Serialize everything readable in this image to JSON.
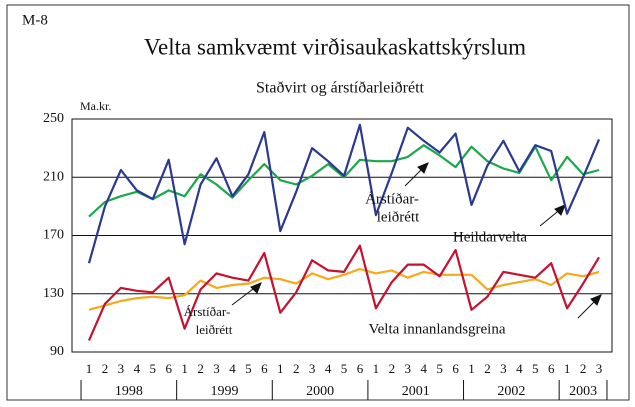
{
  "chart_data": {
    "type": "line",
    "code": "M-8",
    "title": "Velta samkvæmt virðisaukaskattskýrslum",
    "subtitle": "Staðvirt og árstíðarleiðrétt",
    "y_axis_label": "Ma.kr.",
    "categories": [
      "1",
      "2",
      "3",
      "4",
      "5",
      "6",
      "1",
      "2",
      "3",
      "4",
      "5",
      "6",
      "1",
      "2",
      "3",
      "4",
      "5",
      "6",
      "1",
      "2",
      "3",
      "4",
      "5",
      "6",
      "1",
      "2",
      "3",
      "4",
      "5",
      "6",
      "1",
      "2",
      "3"
    ],
    "years": [
      "1998",
      "1999",
      "2000",
      "2001",
      "2002",
      "2003"
    ],
    "ylim": [
      90,
      250
    ],
    "yticks": [
      90,
      130,
      170,
      210,
      250
    ],
    "grid": true,
    "series": [
      {
        "name": "Heildarvelta",
        "color": "#2b3990",
        "values": [
          151,
          190,
          215,
          201,
          195,
          222,
          164,
          205,
          223,
          197,
          212,
          241,
          173,
          200,
          230,
          221,
          211,
          246,
          184,
          213,
          244,
          235,
          227,
          240,
          191,
          218,
          235,
          214,
          232,
          228,
          185,
          210,
          236
        ]
      },
      {
        "color": "#1aa84a",
        "values": [
          183,
          193,
          197,
          200,
          195,
          201,
          197,
          212,
          205,
          196,
          208,
          219,
          208,
          205,
          211,
          219,
          210,
          222,
          221,
          221,
          224,
          232,
          225,
          217,
          231,
          221,
          216,
          213,
          231,
          208,
          224,
          212,
          215
        ]
      },
      {
        "name": "Velta innanlandsgreina",
        "color": "#c4122f",
        "values": [
          98,
          123,
          134,
          132,
          131,
          141,
          106,
          133,
          144,
          141,
          139,
          158,
          117,
          131,
          153,
          146,
          145,
          163,
          120,
          138,
          150,
          150,
          142,
          160,
          119,
          128,
          145,
          143,
          141,
          151,
          120,
          137,
          155
        ]
      },
      {
        "color": "#f7a81b",
        "values": [
          119,
          122,
          125,
          127,
          128,
          127,
          129,
          139,
          134,
          136,
          137,
          141,
          140,
          137,
          144,
          140,
          143,
          147,
          144,
          146,
          141,
          145,
          143,
          143,
          143,
          133,
          136,
          138,
          140,
          136,
          144,
          142,
          145
        ]
      }
    ],
    "annotations": [
      {
        "lines": [
          "Árstíðar-",
          "leiðrétt"
        ]
      },
      {
        "lines": [
          "Árstíðar-",
          "leiðrétt"
        ]
      }
    ]
  }
}
